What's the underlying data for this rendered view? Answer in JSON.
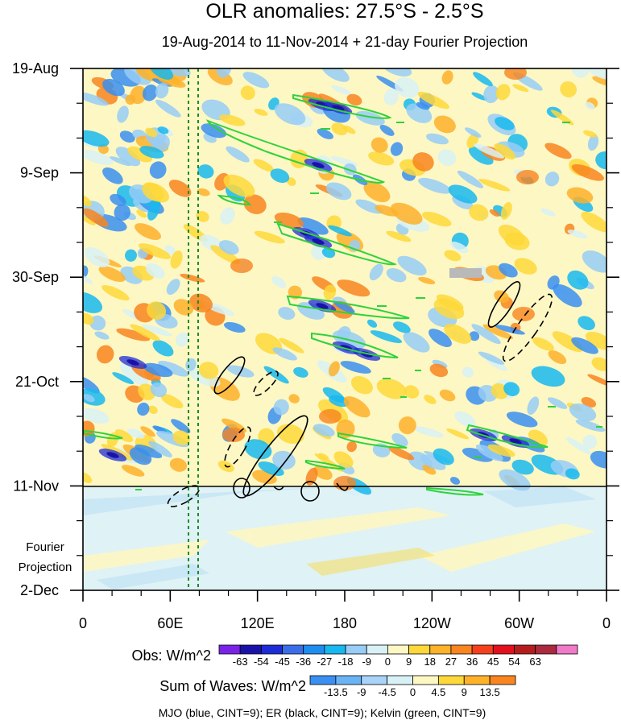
{
  "chart_data": {
    "type": "heatmap",
    "title": "OLR anomalies: 27.5°S - 2.5°S",
    "subtitle": "19-Aug-2014 to 11-Nov-2014 + 21-day Fourier Projection",
    "x_ticks": [
      "0",
      "60E",
      "120E",
      "180",
      "120W",
      "60W",
      "0"
    ],
    "y_ticks": [
      "19-Aug",
      "9-Sep",
      "30-Sep",
      "21-Oct",
      "11-Nov",
      "2-Dec"
    ],
    "projection_label": [
      "Fourier",
      "Projection"
    ],
    "obs_colorbar": {
      "label": "Obs: W/m^2",
      "levels": [
        "-63",
        "-54",
        "-45",
        "-36",
        "-27",
        "-18",
        "-9",
        "0",
        "9",
        "18",
        "27",
        "36",
        "45",
        "54",
        "63"
      ],
      "colors": [
        "#7b22e8",
        "#1a12a8",
        "#1c2cd6",
        "#3a6ee8",
        "#1e8df0",
        "#17b8ef",
        "#97cdf6",
        "#d8f1f6",
        "#fdf7c4",
        "#fed83a",
        "#fdb22a",
        "#f8851f",
        "#f5401e",
        "#e3101e",
        "#b51d1d",
        "#ab2a3d",
        "#f079c8"
      ]
    },
    "waves_colorbar": {
      "label": "Sum of Waves: W/m^2",
      "levels": [
        "-13.5",
        "-9",
        "-4.5",
        "0",
        "4.5",
        "9",
        "13.5"
      ],
      "colors": [
        "#3a8ff0",
        "#6ab3f5",
        "#a9d3f8",
        "#d8f1f6",
        "#fdf7c4",
        "#fed83a",
        "#fdb22a",
        "#f8851f"
      ]
    },
    "footnote": "MJO (blue, CINT=9); ER (black, CINT=9); Kelvin (green, CINT=9)"
  }
}
